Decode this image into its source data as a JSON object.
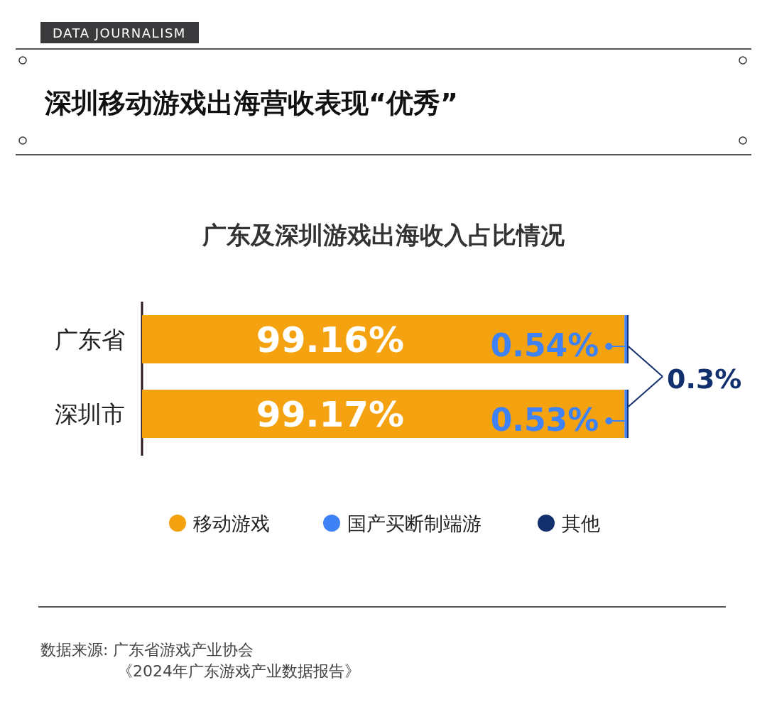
{
  "chart_data": {
    "type": "bar",
    "orientation": "horizontal",
    "stacked": true,
    "title": "深圳移动游戏出海营收表现“优秀”",
    "subtitle": "广东及深圳游戏出海收入占比情况",
    "categories": [
      "广东省",
      "深圳市"
    ],
    "xlim": [
      0,
      100
    ],
    "series": [
      {
        "name": "移动游戏",
        "color": "#f4a20f",
        "values": [
          99.16,
          99.17
        ],
        "value_labels": [
          "99.16%",
          "99.17%"
        ]
      },
      {
        "name": "国产买断制端游",
        "color": "#3f82f5",
        "values": [
          0.54,
          0.53
        ],
        "value_labels": [
          "0.54%",
          "0.53%"
        ]
      },
      {
        "name": "其他",
        "color": "#12306e",
        "values": [
          0.3,
          0.3
        ],
        "value_labels": [
          "0.3%",
          null
        ]
      }
    ],
    "legend": "bottom",
    "annotations": [
      "DATA JOURNALISM",
      "数据来源: 广东省游戏产业协会",
      "《2024年广东游戏产业数据报告》"
    ]
  }
}
